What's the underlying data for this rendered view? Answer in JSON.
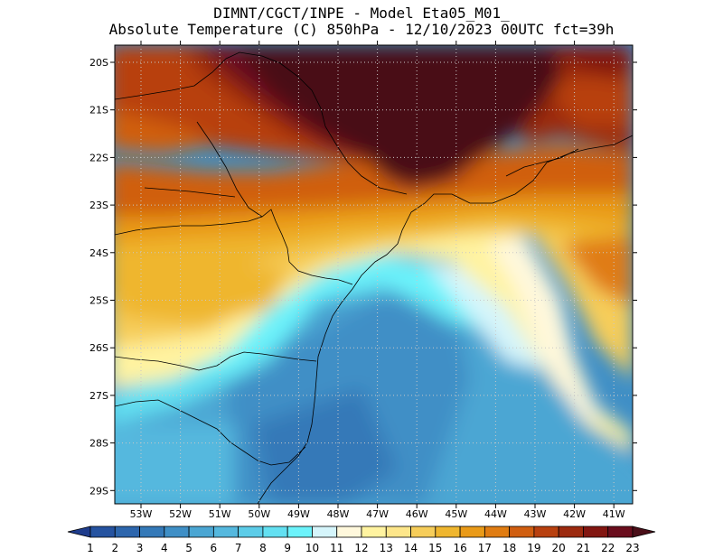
{
  "title": {
    "line1": "DIMNT/CGCT/INPE -  Model Eta05_M01_",
    "line2": "Absolute Temperature (C) 850hPa -  12/10/2023 00UTC fct=39h"
  },
  "lat_labels": [
    "20S",
    "21S",
    "22S",
    "23S",
    "24S",
    "25S",
    "26S",
    "27S",
    "28S",
    "29S"
  ],
  "lon_labels": [
    "53W",
    "52W",
    "51W",
    "50W",
    "49W",
    "48W",
    "47W",
    "46W",
    "45W",
    "44W",
    "43W",
    "42W",
    "41W"
  ],
  "colorbar": {
    "labels": [
      "1",
      "2",
      "3",
      "4",
      "5",
      "6",
      "7",
      "8",
      "9",
      "10",
      "11",
      "12",
      "13",
      "14",
      "15",
      "16",
      "17",
      "18",
      "19",
      "20",
      "21",
      "22",
      "23"
    ],
    "colors": [
      "#1e3c8c",
      "#2553a0",
      "#2d66ad",
      "#3479b8",
      "#3f8fc6",
      "#4ba6d3",
      "#55b8de",
      "#5ccce8",
      "#63e0f1",
      "#6cf3fb",
      "#d5f5fb",
      "#fff8dc",
      "#fff3a0",
      "#fde68a",
      "#f6cd5a",
      "#efb62f",
      "#e99a18",
      "#e07c12",
      "#d05e10",
      "#b8400f",
      "#9c2a0f",
      "#821611",
      "#6a0d1d",
      "#4a0e18"
    ]
  }
}
